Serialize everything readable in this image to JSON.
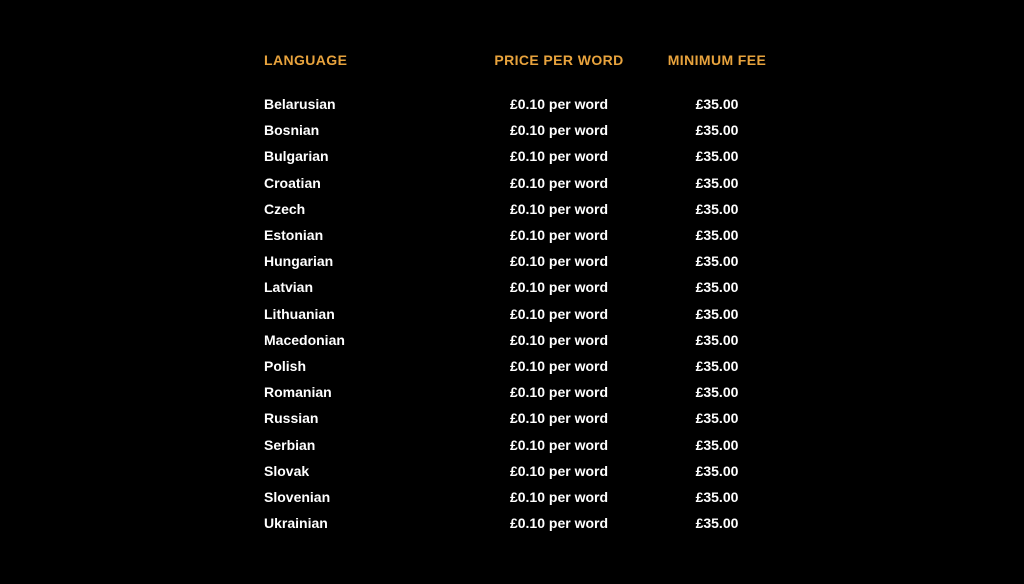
{
  "colors": {
    "background": "#000000",
    "header_text": "#E8A33D",
    "row_text": "#FFFFFF"
  },
  "table": {
    "headers": {
      "language": "LANGUAGE",
      "price_per_word": "PRICE PER WORD",
      "minimum_fee": "MINIMUM FEE"
    },
    "rows": [
      {
        "language": "Belarusian",
        "price": "£0.10 per word",
        "fee": "£35.00"
      },
      {
        "language": "Bosnian",
        "price": "£0.10 per word",
        "fee": "£35.00"
      },
      {
        "language": "Bulgarian",
        "price": "£0.10 per word",
        "fee": "£35.00"
      },
      {
        "language": "Croatian",
        "price": "£0.10 per word",
        "fee": "£35.00"
      },
      {
        "language": "Czech",
        "price": "£0.10 per word",
        "fee": "£35.00"
      },
      {
        "language": "Estonian",
        "price": "£0.10 per word",
        "fee": "£35.00"
      },
      {
        "language": "Hungarian",
        "price": "£0.10 per word",
        "fee": "£35.00"
      },
      {
        "language": "Latvian",
        "price": "£0.10 per word",
        "fee": "£35.00"
      },
      {
        "language": "Lithuanian",
        "price": "£0.10 per word",
        "fee": "£35.00"
      },
      {
        "language": "Macedonian",
        "price": "£0.10 per word",
        "fee": "£35.00"
      },
      {
        "language": "Polish",
        "price": "£0.10 per word",
        "fee": "£35.00"
      },
      {
        "language": "Romanian",
        "price": "£0.10 per word",
        "fee": "£35.00"
      },
      {
        "language": "Russian",
        "price": "£0.10 per word",
        "fee": "£35.00"
      },
      {
        "language": "Serbian",
        "price": "£0.10 per word",
        "fee": "£35.00"
      },
      {
        "language": "Slovak",
        "price": "£0.10 per word",
        "fee": "£35.00"
      },
      {
        "language": "Slovenian",
        "price": "£0.10 per word",
        "fee": "£35.00"
      },
      {
        "language": "Ukrainian",
        "price": "£0.10 per word",
        "fee": "£35.00"
      }
    ]
  }
}
